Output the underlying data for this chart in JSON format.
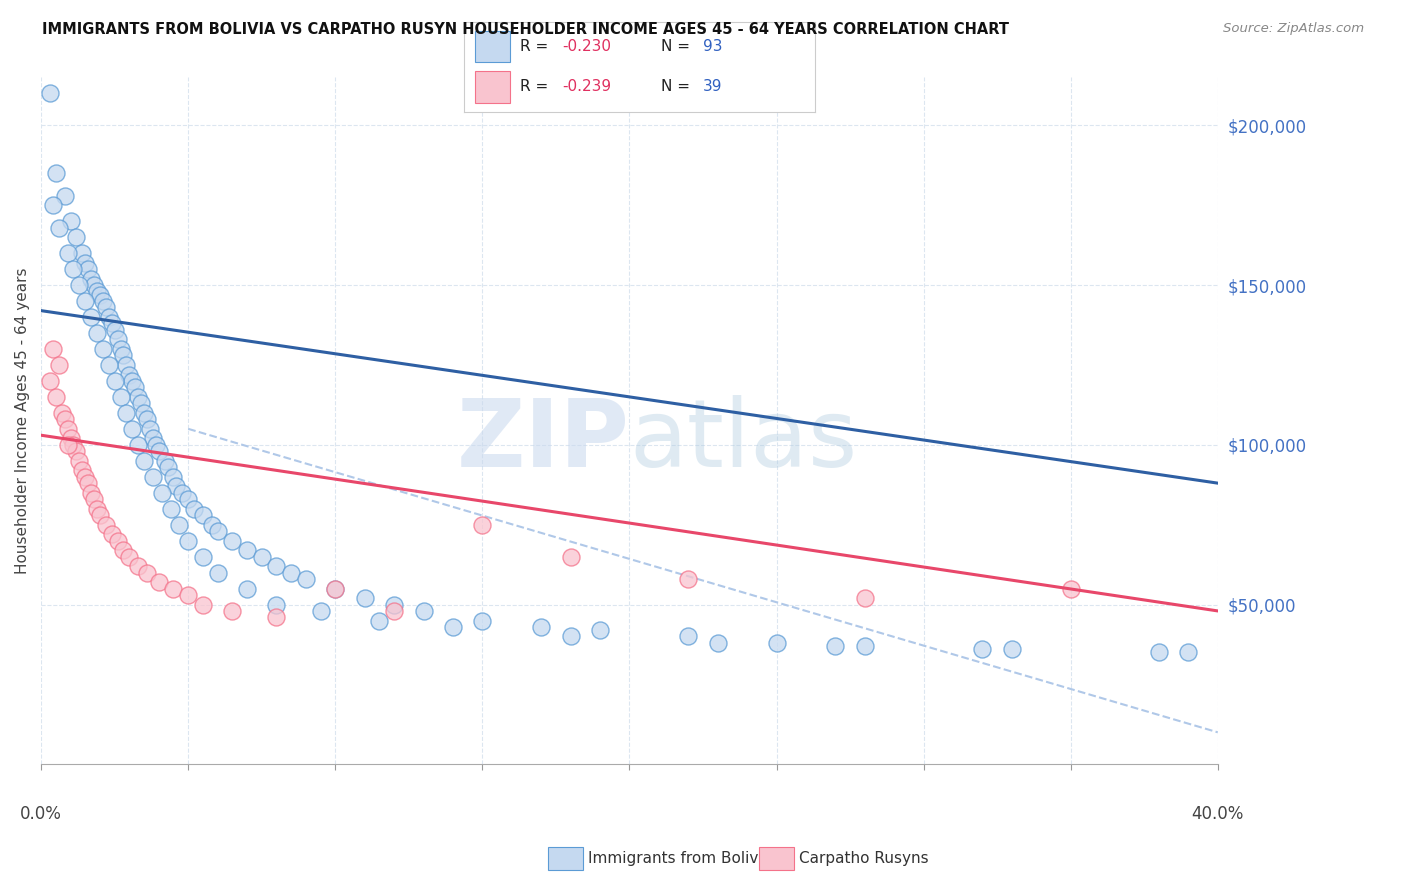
{
  "title": "IMMIGRANTS FROM BOLIVIA VS CARPATHO RUSYN HOUSEHOLDER INCOME AGES 45 - 64 YEARS CORRELATION CHART",
  "source": "Source: ZipAtlas.com",
  "ylabel": "Householder Income Ages 45 - 64 years",
  "ylabel_values": [
    50000,
    100000,
    150000,
    200000
  ],
  "r_bolivia": -0.23,
  "n_bolivia": 93,
  "r_rusyn": -0.239,
  "n_rusyn": 39,
  "color_bolivia_fill": "#c5d9f0",
  "color_rusyn_fill": "#f9c4cf",
  "color_bolivia_edge": "#5b9bd5",
  "color_rusyn_edge": "#f4728a",
  "color_bolivia_line": "#2e5fa3",
  "color_rusyn_line": "#e8476a",
  "color_dashed": "#b0c8e8",
  "background_color": "#ffffff",
  "grid_color": "#dce6f0",
  "bolivia_x": [
    0.3,
    0.5,
    0.8,
    1.0,
    1.2,
    1.4,
    1.5,
    1.6,
    1.7,
    1.8,
    1.9,
    2.0,
    2.1,
    2.2,
    2.3,
    2.4,
    2.5,
    2.6,
    2.7,
    2.8,
    2.9,
    3.0,
    3.1,
    3.2,
    3.3,
    3.4,
    3.5,
    3.6,
    3.7,
    3.8,
    3.9,
    4.0,
    4.2,
    4.3,
    4.5,
    4.6,
    4.8,
    5.0,
    5.2,
    5.5,
    5.8,
    6.0,
    6.5,
    7.0,
    7.5,
    8.0,
    8.5,
    9.0,
    10.0,
    11.0,
    12.0,
    13.0,
    15.0,
    17.0,
    19.0,
    22.0,
    25.0,
    28.0,
    32.0,
    38.0,
    0.4,
    0.6,
    0.9,
    1.1,
    1.3,
    1.5,
    1.7,
    1.9,
    2.1,
    2.3,
    2.5,
    2.7,
    2.9,
    3.1,
    3.3,
    3.5,
    3.8,
    4.1,
    4.4,
    4.7,
    5.0,
    5.5,
    6.0,
    7.0,
    8.0,
    9.5,
    11.5,
    14.0,
    18.0,
    23.0,
    27.0,
    33.0,
    39.0
  ],
  "bolivia_y": [
    210000,
    185000,
    178000,
    170000,
    165000,
    160000,
    157000,
    155000,
    152000,
    150000,
    148000,
    147000,
    145000,
    143000,
    140000,
    138000,
    136000,
    133000,
    130000,
    128000,
    125000,
    122000,
    120000,
    118000,
    115000,
    113000,
    110000,
    108000,
    105000,
    102000,
    100000,
    98000,
    95000,
    93000,
    90000,
    87000,
    85000,
    83000,
    80000,
    78000,
    75000,
    73000,
    70000,
    67000,
    65000,
    62000,
    60000,
    58000,
    55000,
    52000,
    50000,
    48000,
    45000,
    43000,
    42000,
    40000,
    38000,
    37000,
    36000,
    35000,
    175000,
    168000,
    160000,
    155000,
    150000,
    145000,
    140000,
    135000,
    130000,
    125000,
    120000,
    115000,
    110000,
    105000,
    100000,
    95000,
    90000,
    85000,
    80000,
    75000,
    70000,
    65000,
    60000,
    55000,
    50000,
    48000,
    45000,
    43000,
    40000,
    38000,
    37000,
    36000,
    35000
  ],
  "rusyn_x": [
    0.3,
    0.5,
    0.7,
    0.8,
    0.9,
    1.0,
    1.1,
    1.2,
    1.3,
    1.4,
    1.5,
    1.6,
    1.7,
    1.8,
    1.9,
    2.0,
    2.2,
    2.4,
    2.6,
    2.8,
    3.0,
    3.3,
    3.6,
    4.0,
    4.5,
    5.0,
    5.5,
    6.5,
    8.0,
    10.0,
    12.0,
    15.0,
    18.0,
    22.0,
    28.0,
    35.0,
    0.4,
    0.6,
    0.9
  ],
  "rusyn_y": [
    120000,
    115000,
    110000,
    108000,
    105000,
    102000,
    100000,
    98000,
    95000,
    92000,
    90000,
    88000,
    85000,
    83000,
    80000,
    78000,
    75000,
    72000,
    70000,
    67000,
    65000,
    62000,
    60000,
    57000,
    55000,
    53000,
    50000,
    48000,
    46000,
    55000,
    48000,
    75000,
    65000,
    58000,
    52000,
    55000,
    130000,
    125000,
    100000
  ],
  "bolivia_trend_x": [
    0.0,
    40.0
  ],
  "bolivia_trend_y": [
    142000,
    88000
  ],
  "rusyn_trend_x": [
    0.0,
    40.0
  ],
  "rusyn_trend_y": [
    103000,
    48000
  ],
  "dashed_trend_x": [
    5.0,
    40.0
  ],
  "dashed_trend_y": [
    105000,
    10000
  ],
  "xlim": [
    0,
    40
  ],
  "ylim": [
    0,
    215000
  ],
  "xtick_positions": [
    0,
    5,
    10,
    15,
    20,
    25,
    30,
    35,
    40
  ]
}
